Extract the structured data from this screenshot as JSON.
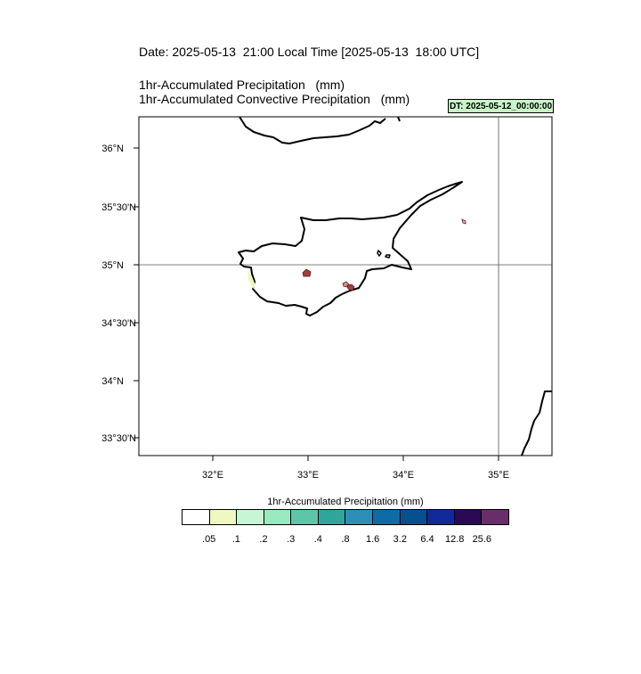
{
  "header": {
    "date_line": "Date: 2025-05-13  21:00 Local Time [2025-05-13  18:00 UTC]",
    "field_1": "1hr-Accumulated Precipitation   (mm)",
    "field_2": "1hr-Accumulated Convective Precipitation   (mm)",
    "dt_stamp": "DT: 2025-05-12_00:00:00"
  },
  "map": {
    "lat_ticks": [
      "36°N",
      "35°30'N",
      "35°N",
      "34°30'N",
      "34°N",
      "33°30'N"
    ],
    "lon_ticks": [
      "32°E",
      "33°E",
      "34°E",
      "35°E"
    ],
    "gridline_lat": "35°N",
    "gridline_lon": "35°E",
    "precip_fill_color": "#a83c3c",
    "light_precip_color": "#eef7b8"
  },
  "colorbar": {
    "title": "1hr-Accumulated Precipitation  (mm)",
    "labels": [
      ".05",
      ".1",
      ".2",
      ".3",
      ".4",
      ".8",
      "1.6",
      "3.2",
      "6.4",
      "12.8",
      "25.6"
    ],
    "colors": [
      "#ffffff",
      "#eef9c2",
      "#c6f6d4",
      "#9be9bf",
      "#5ec6a8",
      "#2fa59b",
      "#2b8fb8",
      "#0f6ba6",
      "#07508f",
      "#112a9a",
      "#2a0a55",
      "#692d6a"
    ]
  }
}
